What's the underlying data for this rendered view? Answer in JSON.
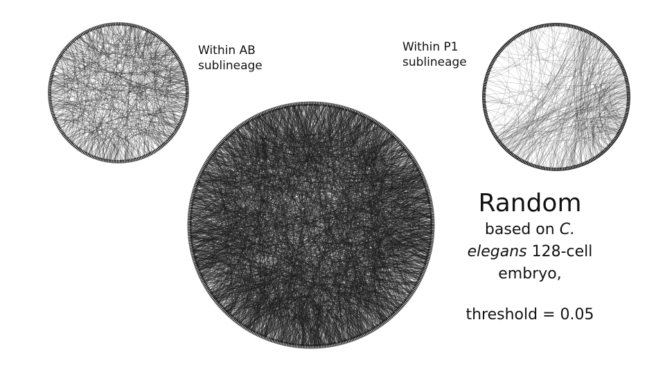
{
  "labels": {
    "ab": {
      "line1": "Within AB",
      "line2": "sublineage"
    },
    "p1": {
      "line1": "Within P1",
      "line2": "sublineage"
    }
  },
  "title": "Random",
  "description": {
    "before": "based on",
    "italic1": "C.",
    "italic2": "elegans",
    "after1": "128-cell",
    "after2": "embryo,"
  },
  "threshold": "threshold = 0.05",
  "colors": {
    "edge": "#1a1a1a",
    "background": "#ffffff"
  }
}
